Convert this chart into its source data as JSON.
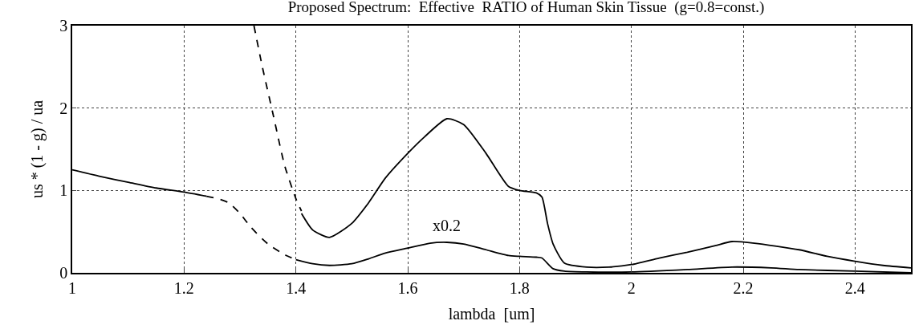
{
  "chart_data": {
    "type": "line",
    "title": "Proposed Spectrum:  Effective  RATIO of Human Skin Tissue  (g=0.8=const.)",
    "xlabel": "lambda  [um]",
    "ylabel": "us * (1 - g) / ua",
    "xlim": [
      1,
      2.5
    ],
    "ylim": [
      0,
      3
    ],
    "xticks": [
      1,
      1.2,
      1.4,
      1.6,
      1.8,
      2,
      2.2,
      2.4
    ],
    "yticks": [
      0,
      1,
      2,
      3
    ],
    "grid": true,
    "marker": "none",
    "series": [
      {
        "color": "#000000",
        "line_style": "solid",
        "x": [
          1.0,
          1.05,
          1.1,
          1.15,
          1.2,
          1.24
        ],
        "values": [
          1.25,
          1.17,
          1.1,
          1.03,
          0.98,
          0.93
        ]
      },
      {
        "color": "#000000",
        "line_style": "dashed",
        "x": [
          1.24,
          1.26,
          1.28,
          1.3,
          1.32,
          1.35,
          1.38,
          1.4
        ],
        "values": [
          0.93,
          0.9,
          0.85,
          0.72,
          0.55,
          0.35,
          0.22,
          0.16
        ]
      },
      {
        "color": "#000000",
        "line_style": "solid",
        "x": [
          1.4,
          1.43,
          1.46,
          1.5,
          1.53,
          1.56,
          1.6,
          1.64,
          1.67,
          1.7,
          1.74,
          1.78,
          1.8,
          1.83,
          1.84,
          1.86,
          1.88,
          1.92,
          2.0,
          2.1,
          2.18,
          2.25,
          2.3,
          2.4,
          2.5
        ],
        "values": [
          0.16,
          0.11,
          0.09,
          0.11,
          0.17,
          0.24,
          0.3,
          0.36,
          0.37,
          0.35,
          0.28,
          0.21,
          0.2,
          0.19,
          0.18,
          0.05,
          0.02,
          0.01,
          0.01,
          0.04,
          0.07,
          0.06,
          0.04,
          0.02,
          0.0
        ]
      },
      {
        "color": "#000000",
        "line_style": "dashed",
        "x": [
          1.325,
          1.34,
          1.36,
          1.38,
          1.4,
          1.41
        ],
        "values": [
          3.0,
          2.5,
          1.9,
          1.3,
          0.9,
          0.75
        ]
      },
      {
        "color": "#000000",
        "line_style": "solid",
        "x": [
          1.41,
          1.43,
          1.46,
          1.5,
          1.53,
          1.56,
          1.6,
          1.63,
          1.67,
          1.7,
          1.74,
          1.78,
          1.8,
          1.83,
          1.84,
          1.85,
          1.86,
          1.88,
          1.92,
          1.96,
          2.0,
          2.05,
          2.1,
          2.15,
          2.18,
          2.22,
          2.3,
          2.35,
          2.4,
          2.45,
          2.5
        ],
        "values": [
          0.72,
          0.52,
          0.43,
          0.6,
          0.85,
          1.15,
          1.45,
          1.65,
          1.87,
          1.8,
          1.45,
          1.05,
          1.0,
          0.97,
          0.92,
          0.6,
          0.35,
          0.12,
          0.07,
          0.07,
          0.1,
          0.18,
          0.25,
          0.33,
          0.38,
          0.36,
          0.28,
          0.2,
          0.14,
          0.09,
          0.06
        ]
      }
    ],
    "annotations": [
      {
        "text": "x0.2",
        "x": 1.67,
        "y": 0.37
      }
    ]
  }
}
